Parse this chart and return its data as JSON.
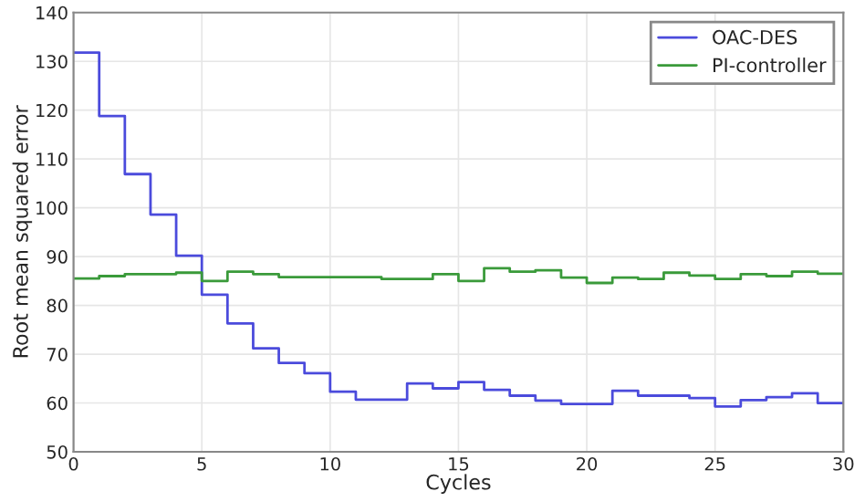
{
  "chart_data": {
    "type": "step",
    "xlabel": "Cycles",
    "ylabel": "Root mean squared error",
    "x": [
      0,
      1,
      2,
      3,
      4,
      5,
      6,
      7,
      8,
      9,
      10,
      11,
      12,
      13,
      14,
      15,
      16,
      17,
      18,
      19,
      20,
      21,
      22,
      23,
      24,
      25,
      26,
      27,
      28,
      29,
      30
    ],
    "series": [
      {
        "name": "OAC-DES",
        "color": "#4b4bdc",
        "values": [
          131.8,
          118.8,
          106.9,
          98.6,
          90.2,
          82.2,
          76.3,
          71.2,
          68.2,
          66.1,
          62.3,
          60.7,
          60.7,
          64,
          63,
          64.3,
          62.7,
          61.5,
          60.5,
          59.8,
          59.8,
          62.5,
          61.5,
          61.5,
          61,
          59.3,
          60.6,
          61.2,
          62,
          60,
          60
        ]
      },
      {
        "name": "PI-controller",
        "color": "#3a9a3a",
        "values": [
          85.5,
          86,
          86.4,
          86.4,
          86.7,
          85,
          86.9,
          86.4,
          85.8,
          85.8,
          85.8,
          85.8,
          85.4,
          85.4,
          86.4,
          85,
          87.6,
          86.9,
          87.2,
          85.7,
          84.6,
          85.7,
          85.4,
          86.7,
          86.1,
          85.4,
          86.4,
          86,
          86.9,
          86.5,
          86.5
        ]
      }
    ],
    "xlim": [
      0,
      30
    ],
    "xticks": [
      0,
      5,
      10,
      15,
      20,
      25,
      30
    ],
    "ylim": [
      50,
      140
    ],
    "yticks": [
      50,
      60,
      70,
      80,
      90,
      100,
      110,
      120,
      130,
      140
    ],
    "grid": true,
    "legend": "top right"
  }
}
